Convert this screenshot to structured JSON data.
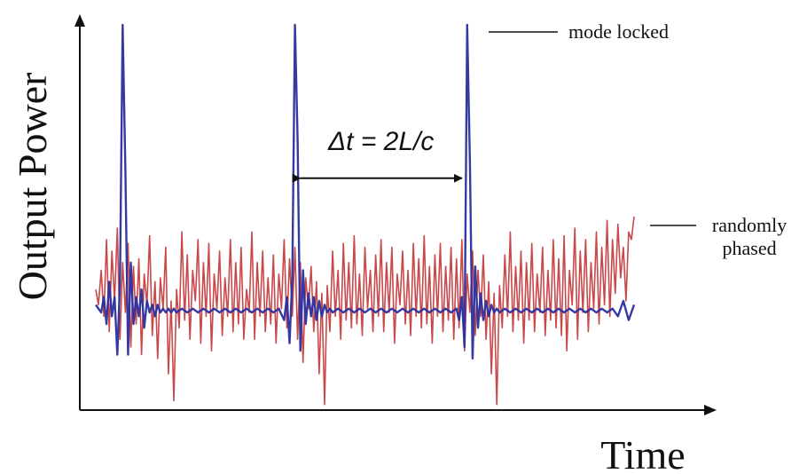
{
  "chart_data": {
    "type": "line",
    "title": "",
    "xlabel": "Time",
    "ylabel": "Output Power",
    "xlim": [
      0,
      100
    ],
    "ylim": [
      0,
      100
    ],
    "grid": false,
    "colors": {
      "randomly_phased": "#c0282a",
      "mode_locked": "#2a2f9e",
      "axes": "#111111"
    },
    "series": [
      {
        "name": "randomly phased",
        "values": [
          [
            0,
            31
          ],
          [
            0.5,
            27
          ],
          [
            1,
            36
          ],
          [
            1.5,
            24
          ],
          [
            2,
            44
          ],
          [
            2.5,
            20
          ],
          [
            3,
            41
          ],
          [
            3.5,
            28
          ],
          [
            4,
            47
          ],
          [
            4.5,
            18
          ],
          [
            5,
            38
          ],
          [
            5.5,
            25
          ],
          [
            6,
            43
          ],
          [
            6.5,
            16
          ],
          [
            7,
            37
          ],
          [
            7.5,
            22
          ],
          [
            8,
            39
          ],
          [
            8.5,
            14
          ],
          [
            9,
            35
          ],
          [
            9.5,
            27
          ],
          [
            10,
            45
          ],
          [
            10.5,
            19
          ],
          [
            11,
            33
          ],
          [
            11.5,
            13
          ],
          [
            12,
            34
          ],
          [
            12.5,
            26
          ],
          [
            13,
            42
          ],
          [
            13.5,
            9
          ],
          [
            14,
            28
          ],
          [
            14.5,
            2
          ],
          [
            15,
            31
          ],
          [
            15.5,
            21
          ],
          [
            16,
            46
          ],
          [
            16.5,
            23
          ],
          [
            17,
            40
          ],
          [
            17.5,
            18
          ],
          [
            18,
            36
          ],
          [
            18.5,
            28
          ],
          [
            19,
            44
          ],
          [
            19.5,
            17
          ],
          [
            20,
            38
          ],
          [
            20.5,
            24
          ],
          [
            21,
            43
          ],
          [
            21.5,
            15
          ],
          [
            22,
            35
          ],
          [
            22.5,
            26
          ],
          [
            23,
            41
          ],
          [
            23.5,
            19
          ],
          [
            24,
            34
          ],
          [
            24.5,
            24
          ],
          [
            25,
            44
          ],
          [
            25.5,
            20
          ],
          [
            26,
            38
          ],
          [
            26.5,
            22
          ],
          [
            27,
            42
          ],
          [
            27.5,
            18
          ],
          [
            28,
            31
          ],
          [
            28.5,
            25
          ],
          [
            29,
            46
          ],
          [
            29.5,
            18
          ],
          [
            30,
            38
          ],
          [
            30.5,
            24
          ],
          [
            31,
            41
          ],
          [
            31.5,
            20
          ],
          [
            32,
            34
          ],
          [
            32.5,
            22
          ],
          [
            33,
            40
          ],
          [
            33.5,
            17
          ],
          [
            34,
            35
          ],
          [
            34.5,
            26
          ],
          [
            35,
            44
          ],
          [
            35.5,
            21
          ],
          [
            36,
            39
          ],
          [
            36.5,
            24
          ],
          [
            37,
            42
          ],
          [
            37.5,
            18
          ],
          [
            38,
            38
          ],
          [
            38.5,
            12
          ],
          [
            39,
            34
          ],
          [
            39.5,
            26
          ],
          [
            40,
            37
          ],
          [
            40.5,
            20
          ],
          [
            41,
            33
          ],
          [
            41.5,
            9
          ],
          [
            42,
            30
          ],
          [
            42.5,
            1
          ],
          [
            43,
            32
          ],
          [
            43.5,
            20
          ],
          [
            44,
            41
          ],
          [
            44.5,
            24
          ],
          [
            45,
            36
          ],
          [
            45.5,
            18
          ],
          [
            46,
            43
          ],
          [
            46.5,
            23
          ],
          [
            47,
            38
          ],
          [
            47.5,
            21
          ],
          [
            48,
            45
          ],
          [
            48.5,
            22
          ],
          [
            49,
            35
          ],
          [
            49.5,
            19
          ],
          [
            50,
            42
          ],
          [
            50.5,
            26
          ],
          [
            51,
            36
          ],
          [
            51.5,
            20
          ],
          [
            52,
            40
          ],
          [
            52.5,
            24
          ],
          [
            53,
            44
          ],
          [
            53.5,
            20
          ],
          [
            54,
            38
          ],
          [
            54.5,
            25
          ],
          [
            55,
            42
          ],
          [
            55.5,
            17
          ],
          [
            56,
            35
          ],
          [
            56.5,
            27
          ],
          [
            57,
            41
          ],
          [
            57.5,
            22
          ],
          [
            58,
            36
          ],
          [
            58.5,
            19
          ],
          [
            59,
            43
          ],
          [
            59.5,
            24
          ],
          [
            60,
            39
          ],
          [
            60.5,
            21
          ],
          [
            61,
            45
          ],
          [
            61.5,
            22
          ],
          [
            62,
            37
          ],
          [
            62.5,
            17
          ],
          [
            63,
            40
          ],
          [
            63.5,
            24
          ],
          [
            64,
            43
          ],
          [
            64.5,
            20
          ],
          [
            65,
            37
          ],
          [
            65.5,
            23
          ],
          [
            66,
            42
          ],
          [
            66.5,
            18
          ],
          [
            67,
            39
          ],
          [
            67.5,
            21
          ],
          [
            68,
            44
          ],
          [
            68.5,
            15
          ],
          [
            69,
            35
          ],
          [
            69.5,
            25
          ],
          [
            70,
            41
          ],
          [
            70.5,
            19
          ],
          [
            71,
            36
          ],
          [
            71.5,
            24
          ],
          [
            72,
            40
          ],
          [
            72.5,
            18
          ],
          [
            73,
            33
          ],
          [
            73.5,
            9
          ],
          [
            74,
            30
          ],
          [
            74.5,
            1
          ],
          [
            75,
            32
          ],
          [
            75.5,
            21
          ],
          [
            76,
            40
          ],
          [
            76.5,
            24
          ],
          [
            77,
            46
          ],
          [
            77.5,
            20
          ],
          [
            78,
            37
          ],
          [
            78.5,
            23
          ],
          [
            79,
            41
          ],
          [
            79.5,
            17
          ],
          [
            80,
            38
          ],
          [
            80.5,
            23
          ],
          [
            81,
            43
          ],
          [
            81.5,
            20
          ],
          [
            82,
            35
          ],
          [
            82.5,
            25
          ],
          [
            83,
            42
          ],
          [
            83.5,
            19
          ],
          [
            84,
            36
          ],
          [
            84.5,
            23
          ],
          [
            85,
            44
          ],
          [
            85.5,
            21
          ],
          [
            86,
            39
          ],
          [
            86.5,
            19
          ],
          [
            87,
            45
          ],
          [
            87.5,
            15
          ],
          [
            88,
            36
          ],
          [
            88.5,
            27
          ],
          [
            89,
            47
          ],
          [
            89.5,
            18
          ],
          [
            90,
            41
          ],
          [
            90.5,
            25
          ],
          [
            91,
            44
          ],
          [
            91.5,
            20
          ],
          [
            92,
            38
          ],
          [
            92.5,
            26
          ],
          [
            93,
            46
          ],
          [
            93.5,
            22
          ],
          [
            94,
            42
          ],
          [
            94.5,
            27
          ],
          [
            95,
            49
          ],
          [
            95.5,
            24
          ],
          [
            96,
            44
          ],
          [
            96.5,
            30
          ],
          [
            97,
            48
          ],
          [
            97.5,
            34
          ],
          [
            98,
            42
          ],
          [
            98.5,
            28
          ],
          [
            99,
            46
          ],
          [
            99.5,
            44
          ],
          [
            100,
            50
          ]
        ]
      },
      {
        "name": "mode locked",
        "values": [
          [
            0,
            27
          ],
          [
            1,
            25
          ],
          [
            1.5,
            29
          ],
          [
            2,
            22
          ],
          [
            2.5,
            33
          ],
          [
            3,
            24
          ],
          [
            3.5,
            29
          ],
          [
            4,
            14
          ],
          [
            4.5,
            33
          ],
          [
            5,
            100
          ],
          [
            5.5,
            62
          ],
          [
            6,
            14
          ],
          [
            6.5,
            38
          ],
          [
            7,
            22
          ],
          [
            7.5,
            29
          ],
          [
            8,
            24
          ],
          [
            8.5,
            31
          ],
          [
            9,
            21
          ],
          [
            9.5,
            28
          ],
          [
            10,
            25
          ],
          [
            10.5,
            27
          ],
          [
            11,
            24
          ],
          [
            11.5,
            27
          ],
          [
            12,
            25
          ],
          [
            12.5,
            26
          ],
          [
            13,
            25
          ],
          [
            13.5,
            26
          ],
          [
            14,
            25
          ],
          [
            14.5,
            26
          ],
          [
            15,
            25
          ],
          [
            16,
            26
          ],
          [
            17,
            25
          ],
          [
            18,
            26
          ],
          [
            19,
            25
          ],
          [
            20,
            26
          ],
          [
            21,
            25
          ],
          [
            22,
            26
          ],
          [
            23,
            25
          ],
          [
            24,
            26
          ],
          [
            25,
            25
          ],
          [
            26,
            26
          ],
          [
            27,
            25
          ],
          [
            28,
            26
          ],
          [
            29,
            25
          ],
          [
            30,
            26
          ],
          [
            31,
            25
          ],
          [
            32,
            26
          ],
          [
            33,
            25
          ],
          [
            34,
            26
          ],
          [
            35,
            23
          ],
          [
            35.5,
            29
          ],
          [
            36,
            17
          ],
          [
            36.5,
            34
          ],
          [
            37,
            100
          ],
          [
            37.5,
            70
          ],
          [
            38,
            15
          ],
          [
            38.5,
            36
          ],
          [
            39,
            22
          ],
          [
            39.5,
            30
          ],
          [
            40,
            24
          ],
          [
            40.5,
            29
          ],
          [
            41,
            23
          ],
          [
            41.5,
            28
          ],
          [
            42,
            24
          ],
          [
            42.5,
            27
          ],
          [
            43,
            25
          ],
          [
            43.5,
            26
          ],
          [
            44,
            25
          ],
          [
            45,
            26
          ],
          [
            46,
            25
          ],
          [
            47,
            26
          ],
          [
            48,
            25
          ],
          [
            49,
            26
          ],
          [
            50,
            25
          ],
          [
            51,
            26
          ],
          [
            52,
            25
          ],
          [
            53,
            26
          ],
          [
            54,
            25
          ],
          [
            55,
            26
          ],
          [
            56,
            25
          ],
          [
            57,
            26
          ],
          [
            58,
            25
          ],
          [
            59,
            26
          ],
          [
            60,
            25
          ],
          [
            61,
            26
          ],
          [
            62,
            25
          ],
          [
            63,
            26
          ],
          [
            64,
            25
          ],
          [
            65,
            26
          ],
          [
            66,
            25
          ],
          [
            67,
            26
          ],
          [
            67.5,
            23
          ],
          [
            68,
            29
          ],
          [
            68.5,
            16
          ],
          [
            69,
            100
          ],
          [
            69.5,
            64
          ],
          [
            70,
            13
          ],
          [
            70.5,
            37
          ],
          [
            71,
            21
          ],
          [
            71.5,
            30
          ],
          [
            72,
            23
          ],
          [
            72.5,
            28
          ],
          [
            73,
            24
          ],
          [
            73.5,
            27
          ],
          [
            74,
            25
          ],
          [
            74.5,
            26
          ],
          [
            75,
            25
          ],
          [
            76,
            26
          ],
          [
            77,
            25
          ],
          [
            78,
            26
          ],
          [
            79,
            25
          ],
          [
            80,
            26
          ],
          [
            81,
            25
          ],
          [
            82,
            26
          ],
          [
            83,
            25
          ],
          [
            84,
            26
          ],
          [
            85,
            25
          ],
          [
            86,
            26
          ],
          [
            87,
            25
          ],
          [
            88,
            26
          ],
          [
            89,
            25
          ],
          [
            90,
            26
          ],
          [
            91,
            25
          ],
          [
            92,
            26
          ],
          [
            93,
            25
          ],
          [
            94,
            26
          ],
          [
            95,
            25
          ],
          [
            96,
            26
          ],
          [
            97,
            24
          ],
          [
            98,
            28
          ],
          [
            99,
            23
          ],
          [
            100,
            27
          ]
        ]
      }
    ],
    "annotations": [
      {
        "id": "spacing",
        "text": "Δt = 2L/c",
        "from_x": 37,
        "to_x": 69,
        "y": 60
      },
      {
        "id": "mode_locked",
        "text": "mode locked",
        "target_x": 71,
        "target_y": 100
      },
      {
        "id": "randomly_phased",
        "text": "randomly phased",
        "line1": "randomly",
        "line2": "phased",
        "target_x": 101,
        "target_y": 50
      }
    ]
  }
}
